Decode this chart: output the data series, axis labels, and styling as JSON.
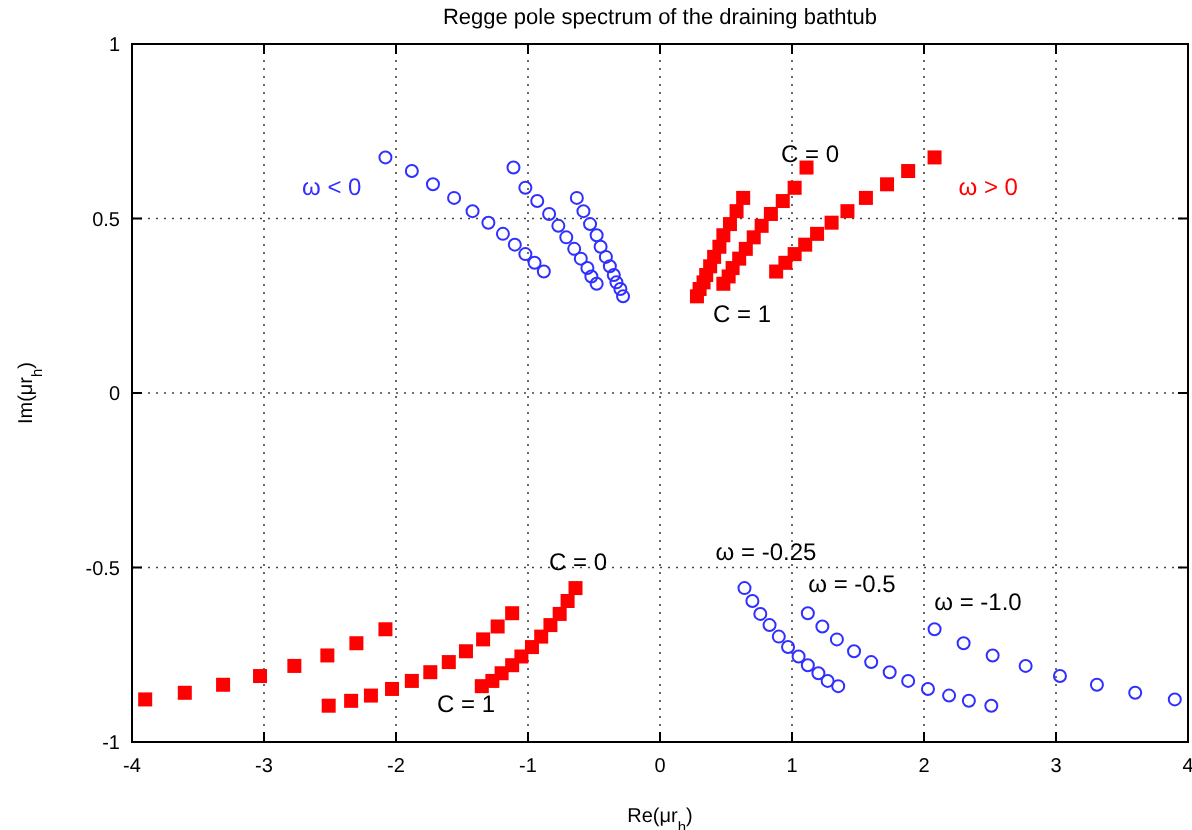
{
  "chart_data": {
    "type": "scatter",
    "title": "Regge pole spectrum of the draining bathtub",
    "xlabel": "Re(μr$_{h}$)",
    "ylabel": "Im(μr$_{h}$)",
    "xlim": [
      -4,
      4
    ],
    "ylim": [
      -1,
      1
    ],
    "xticks": [
      -4,
      -3,
      -2,
      -1,
      0,
      1,
      2,
      3,
      4
    ],
    "yticks": [
      -1,
      -0.5,
      0,
      0.5,
      1
    ],
    "grid": true,
    "series": [
      {
        "name": "ω < 0",
        "color": "#2f2fff",
        "marker": "circle",
        "x": [
          -2.08,
          -1.88,
          -1.72,
          -1.56,
          -1.42,
          -1.3,
          -1.19,
          -1.1,
          -1.02,
          -0.95,
          -0.88
        ],
        "values": [
          0.675,
          0.636,
          0.598,
          0.559,
          0.521,
          0.488,
          0.456,
          0.425,
          0.398,
          0.373,
          0.348
        ]
      },
      {
        "color": "#2f2fff",
        "marker": "circle",
        "x": [
          -1.11,
          -1.02,
          -0.93,
          -0.84,
          -0.77,
          -0.71,
          -0.65,
          -0.6,
          -0.55,
          -0.52,
          -0.48
        ],
        "values": [
          0.646,
          0.588,
          0.55,
          0.513,
          0.479,
          0.446,
          0.413,
          0.385,
          0.358,
          0.334,
          0.313
        ]
      },
      {
        "color": "#2f2fff",
        "marker": "circle",
        "x": [
          -0.63,
          -0.58,
          -0.53,
          -0.48,
          -0.45,
          -0.41,
          -0.38,
          -0.35,
          -0.33,
          -0.3,
          -0.28
        ],
        "values": [
          0.559,
          0.521,
          0.484,
          0.452,
          0.419,
          0.39,
          0.363,
          0.338,
          0.317,
          0.298,
          0.277
        ]
      },
      {
        "name": "ω > 0",
        "color": "#ff0000",
        "marker": "square",
        "x": [
          2.08,
          1.88,
          1.72,
          1.56,
          1.42,
          1.3,
          1.19,
          1.1,
          1.02,
          0.95,
          0.88
        ],
        "values": [
          0.675,
          0.636,
          0.598,
          0.559,
          0.521,
          0.488,
          0.456,
          0.425,
          0.398,
          0.373,
          0.348
        ]
      },
      {
        "color": "#ff0000",
        "marker": "square",
        "x": [
          1.11,
          1.02,
          0.93,
          0.84,
          0.77,
          0.71,
          0.65,
          0.6,
          0.55,
          0.52,
          0.48
        ],
        "values": [
          0.646,
          0.588,
          0.55,
          0.513,
          0.479,
          0.446,
          0.413,
          0.385,
          0.358,
          0.334,
          0.313
        ]
      },
      {
        "color": "#ff0000",
        "marker": "square",
        "x": [
          0.63,
          0.58,
          0.53,
          0.48,
          0.45,
          0.41,
          0.38,
          0.35,
          0.33,
          0.3,
          0.28
        ],
        "values": [
          0.559,
          0.521,
          0.484,
          0.452,
          0.419,
          0.39,
          0.363,
          0.338,
          0.317,
          0.298,
          0.277
        ]
      },
      {
        "color": "#2f2fff",
        "marker": "circle",
        "x": [
          0.64,
          0.7,
          0.76,
          0.83,
          0.9,
          0.97,
          1.05,
          1.12,
          1.2,
          1.27,
          1.35
        ],
        "values": [
          -0.559,
          -0.596,
          -0.633,
          -0.665,
          -0.698,
          -0.728,
          -0.755,
          -0.78,
          -0.803,
          -0.825,
          -0.84
        ]
      },
      {
        "color": "#2f2fff",
        "marker": "circle",
        "x": [
          1.12,
          1.23,
          1.34,
          1.47,
          1.6,
          1.74,
          1.88,
          2.03,
          2.19,
          2.34,
          2.51
        ],
        "values": [
          -0.631,
          -0.669,
          -0.706,
          -0.74,
          -0.771,
          -0.8,
          -0.825,
          -0.848,
          -0.867,
          -0.882,
          -0.896
        ]
      },
      {
        "color": "#2f2fff",
        "marker": "circle",
        "x": [
          2.08,
          2.3,
          2.52,
          2.77,
          3.03,
          3.31,
          3.6,
          3.9
        ],
        "values": [
          -0.677,
          -0.717,
          -0.752,
          -0.782,
          -0.811,
          -0.836,
          -0.859,
          -0.878
        ]
      },
      {
        "color": "#ff0000",
        "marker": "square",
        "x": [
          -0.64,
          -0.7,
          -0.76,
          -0.83,
          -0.9,
          -0.97,
          -1.05,
          -1.12,
          -1.2,
          -1.27,
          -1.35
        ],
        "values": [
          -0.559,
          -0.596,
          -0.633,
          -0.665,
          -0.698,
          -0.728,
          -0.755,
          -0.78,
          -0.803,
          -0.825,
          -0.84
        ]
      },
      {
        "color": "#ff0000",
        "marker": "square",
        "x": [
          -1.12,
          -1.23,
          -1.34,
          -1.47,
          -1.6,
          -1.74,
          -1.88,
          -2.03,
          -2.19,
          -2.34,
          -2.51
        ],
        "values": [
          -0.631,
          -0.669,
          -0.706,
          -0.74,
          -0.771,
          -0.8,
          -0.825,
          -0.848,
          -0.867,
          -0.882,
          -0.896
        ]
      },
      {
        "color": "#ff0000",
        "marker": "square",
        "x": [
          -2.08,
          -2.3,
          -2.52,
          -2.77,
          -3.03,
          -3.31,
          -3.6,
          -3.9
        ],
        "values": [
          -0.677,
          -0.717,
          -0.752,
          -0.782,
          -0.811,
          -0.836,
          -0.859,
          -0.878
        ]
      }
    ],
    "annotations": [
      "C = 0",
      "C = 1",
      "C = 0",
      "C = 1",
      "ω = -0.25",
      "ω = -0.5",
      "ω = -1.0"
    ]
  }
}
